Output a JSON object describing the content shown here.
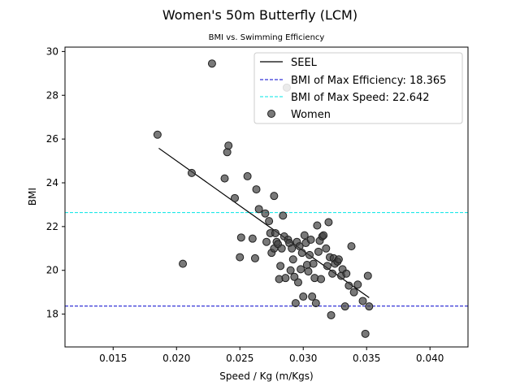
{
  "chart_data": {
    "type": "scatter",
    "title": "Women's 50m Butterfly (LCM)",
    "subtitle": "BMI vs. Swimming Efficiency",
    "xlabel": "Speed / Kg (m/Kgs)",
    "ylabel": "BMI",
    "xlim": [
      0.0112,
      0.043
    ],
    "ylim": [
      16.5,
      30.2
    ],
    "xticks": [
      0.015,
      0.02,
      0.025,
      0.03,
      0.035,
      0.04
    ],
    "xtick_labels": [
      "0.015",
      "0.020",
      "0.025",
      "0.030",
      "0.035",
      "0.040"
    ],
    "yticks": [
      18,
      20,
      22,
      24,
      26,
      28,
      30
    ],
    "ytick_labels": [
      "18",
      "20",
      "22",
      "24",
      "26",
      "28",
      "30"
    ],
    "grid": false,
    "legend_position": "top-right",
    "colors": {
      "seel": "#000000",
      "max_efficiency": "#0000cc",
      "max_speed": "#00e5e5",
      "points": "#404040"
    },
    "seel_line": {
      "name": "SEEL",
      "x": [
        0.0186,
        0.0352
      ],
      "y": [
        25.58,
        18.75
      ]
    },
    "hlines": [
      {
        "name": "BMI of Max Efficiency: 18.365",
        "y": 18.365,
        "color_key": "max_efficiency"
      },
      {
        "name": "BMI of Max Speed: 22.642",
        "y": 22.642,
        "color_key": "max_speed"
      }
    ],
    "series": [
      {
        "name": "Women",
        "points": [
          [
            0.0185,
            26.2
          ],
          [
            0.0212,
            24.45
          ],
          [
            0.0205,
            20.3
          ],
          [
            0.0228,
            29.45
          ],
          [
            0.0238,
            24.2
          ],
          [
            0.024,
            25.4
          ],
          [
            0.0241,
            25.7
          ],
          [
            0.0246,
            23.3
          ],
          [
            0.025,
            20.6
          ],
          [
            0.0251,
            21.5
          ],
          [
            0.0256,
            24.3
          ],
          [
            0.026,
            21.45
          ],
          [
            0.0262,
            20.55
          ],
          [
            0.0263,
            23.7
          ],
          [
            0.0265,
            22.8
          ],
          [
            0.027,
            22.6
          ],
          [
            0.0271,
            21.3
          ],
          [
            0.0273,
            22.25
          ],
          [
            0.0274,
            21.7
          ],
          [
            0.0275,
            20.8
          ],
          [
            0.0277,
            21.0
          ],
          [
            0.0277,
            23.4
          ],
          [
            0.0278,
            21.7
          ],
          [
            0.0279,
            21.3
          ],
          [
            0.028,
            21.2
          ],
          [
            0.0281,
            19.6
          ],
          [
            0.0282,
            20.2
          ],
          [
            0.0283,
            21.0
          ],
          [
            0.0284,
            22.5
          ],
          [
            0.0285,
            21.55
          ],
          [
            0.0286,
            19.65
          ],
          [
            0.0287,
            28.35
          ],
          [
            0.0288,
            21.4
          ],
          [
            0.0289,
            21.25
          ],
          [
            0.029,
            20.0
          ],
          [
            0.0291,
            21.0
          ],
          [
            0.0292,
            20.5
          ],
          [
            0.0293,
            19.7
          ],
          [
            0.0294,
            18.5
          ],
          [
            0.0295,
            21.3
          ],
          [
            0.0296,
            19.45
          ],
          [
            0.0297,
            21.1
          ],
          [
            0.0298,
            20.05
          ],
          [
            0.0299,
            20.8
          ],
          [
            0.03,
            18.8
          ],
          [
            0.0301,
            21.6
          ],
          [
            0.0302,
            21.25
          ],
          [
            0.0303,
            20.25
          ],
          [
            0.0304,
            19.95
          ],
          [
            0.0305,
            20.7
          ],
          [
            0.0306,
            21.4
          ],
          [
            0.0307,
            18.8
          ],
          [
            0.0308,
            20.3
          ],
          [
            0.0309,
            19.65
          ],
          [
            0.031,
            18.5
          ],
          [
            0.0311,
            22.05
          ],
          [
            0.0312,
            20.85
          ],
          [
            0.0313,
            21.35
          ],
          [
            0.0314,
            19.6
          ],
          [
            0.0315,
            21.55
          ],
          [
            0.0316,
            21.6
          ],
          [
            0.0318,
            21.0
          ],
          [
            0.0319,
            20.2
          ],
          [
            0.032,
            22.2
          ],
          [
            0.0321,
            20.6
          ],
          [
            0.0322,
            17.95
          ],
          [
            0.0323,
            19.85
          ],
          [
            0.0324,
            20.55
          ],
          [
            0.0325,
            20.3
          ],
          [
            0.0327,
            20.4
          ],
          [
            0.0328,
            20.5
          ],
          [
            0.033,
            19.75
          ],
          [
            0.0331,
            20.05
          ],
          [
            0.0333,
            18.35
          ],
          [
            0.0334,
            19.85
          ],
          [
            0.0336,
            19.3
          ],
          [
            0.0338,
            21.1
          ],
          [
            0.034,
            19.0
          ],
          [
            0.0343,
            19.35
          ],
          [
            0.0347,
            18.6
          ],
          [
            0.0349,
            17.1
          ],
          [
            0.0351,
            19.75
          ],
          [
            0.0352,
            18.35
          ]
        ]
      }
    ]
  }
}
